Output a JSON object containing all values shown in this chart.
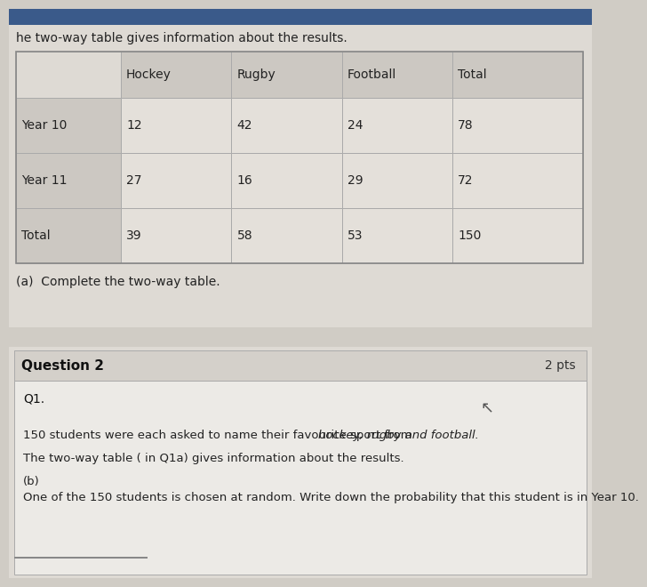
{
  "top_text": "he two-way table gives information about the results.",
  "table_headers": [
    "",
    "Hockey",
    "Rugby",
    "Football",
    "Total"
  ],
  "table_rows": [
    [
      "Year 10",
      "12",
      "42",
      "24",
      "78"
    ],
    [
      "Year 11",
      "27",
      "16",
      "29",
      "72"
    ],
    [
      "Total",
      "39",
      "58",
      "53",
      "150"
    ]
  ],
  "instruction_a": "(a)  Complete the two-way table.",
  "question2_header": "Question 2",
  "question2_pts": "2 pts",
  "q1_label": "Q1.",
  "para1_normal": "150 students were each asked to name their favourite sport from ",
  "para1_italic": "hockey, rugby and football.",
  "para2": "The two-way table ( in Q1a) gives information about the results.",
  "para3": "(b)",
  "para4": "One of the 150 students is chosen at random. Write down the probability that this student is in Year 10.",
  "bg_main": "#d0ccc5",
  "bg_top_panel": "#dedad4",
  "bg_table_header": "#ccc8c2",
  "bg_table_row_label": "#ccc8c2",
  "bg_table_data_light": "#e4e0da",
  "bg_table_data_medium": "#d8d4ce",
  "bg_q2_header": "#d4d0ca",
  "bg_q2_content": "#eceae6",
  "top_bar_color": "#3a5a8a",
  "text_color": "#222222",
  "text_color_light": "#444444",
  "border_color": "#aaaaaa"
}
